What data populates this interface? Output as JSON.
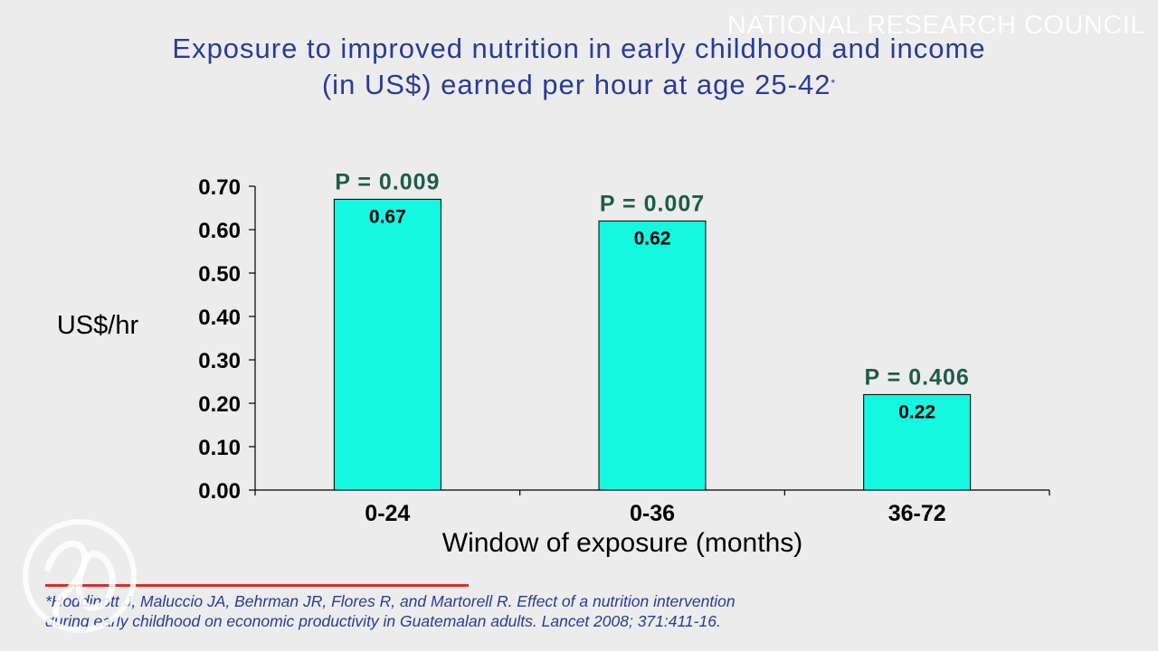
{
  "watermark": "NATIONAL RESEARCH COUNCIL",
  "title": {
    "line1": "Exposure to improved nutrition in early childhood and income",
    "line2": "(in US$) earned per hour at age 25-42",
    "marker": "*"
  },
  "chart_data": {
    "type": "bar",
    "categories": [
      "0-24",
      "0-36",
      "36-72"
    ],
    "values": [
      0.67,
      0.62,
      0.22
    ],
    "value_labels": [
      "0.67",
      "0.62",
      "0.22"
    ],
    "annotations": [
      "P = 0.009",
      "P = 0.007",
      "P = 0.406"
    ],
    "xlabel": "Window of exposure (months)",
    "ylabel": "US$/hr",
    "ylim": [
      0,
      0.7
    ],
    "yticks": [
      "0.00",
      "0.10",
      "0.20",
      "0.30",
      "0.40",
      "0.50",
      "0.60",
      "0.70"
    ],
    "grid": false,
    "legend": "none",
    "colors": {
      "bar": "#14f7e1",
      "annotation": "#1f5a4a",
      "axis": "#000000"
    }
  },
  "footer": {
    "line1": "*Hoddinott J, Maluccio JA, Behrman JR, Flores R, and Martorell R.  Effect of a nutrition intervention",
    "line2": "during early childhood on economic productivity in Guatemalan adults. Lancet 2008; 371:411-16."
  },
  "colors": {
    "background": "#ececec",
    "title": "#2a3b9a",
    "footer_rule": "#d6302a"
  }
}
